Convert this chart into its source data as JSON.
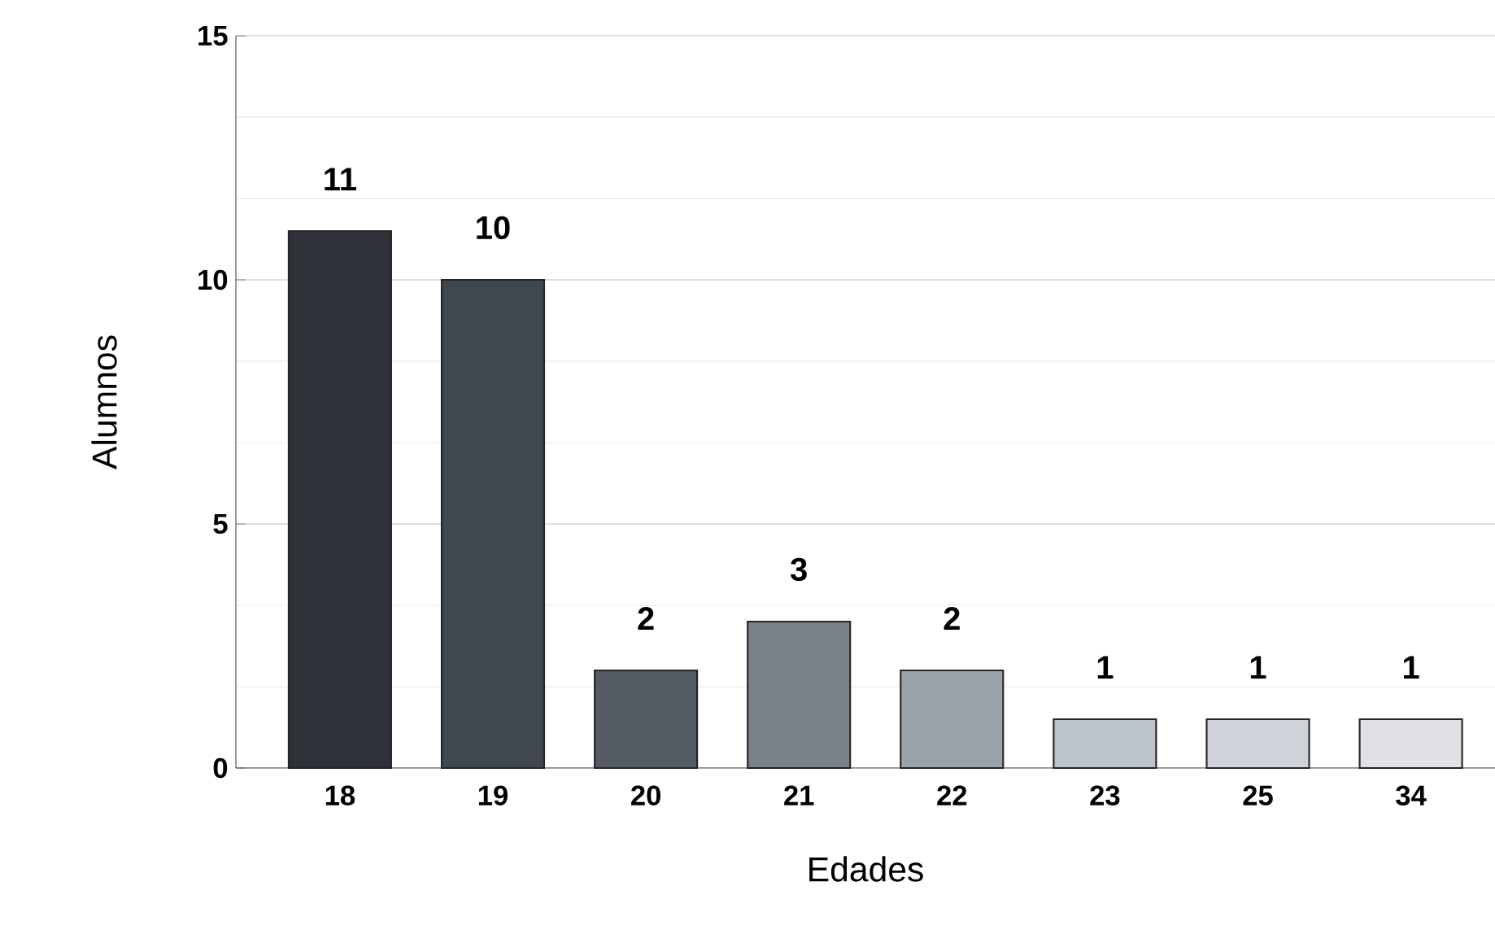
{
  "chart_data": {
    "type": "bar",
    "xlabel": "Edades",
    "ylabel": "Alumnos",
    "categories": [
      "18",
      "19",
      "20",
      "21",
      "22",
      "23",
      "25",
      "34"
    ],
    "values": [
      11,
      10,
      2,
      3,
      2,
      1,
      1,
      1
    ],
    "colors": [
      "#2e3238",
      "#41474e",
      "#545b63",
      "#798087",
      "#9ba2a9",
      "#bdc3ca",
      "#cfd3d9",
      "#dfe1e4"
    ],
    "ylim": [
      0,
      15
    ],
    "yticks": [
      0,
      5,
      10,
      15
    ],
    "grid": "y",
    "data_labels": true
  }
}
